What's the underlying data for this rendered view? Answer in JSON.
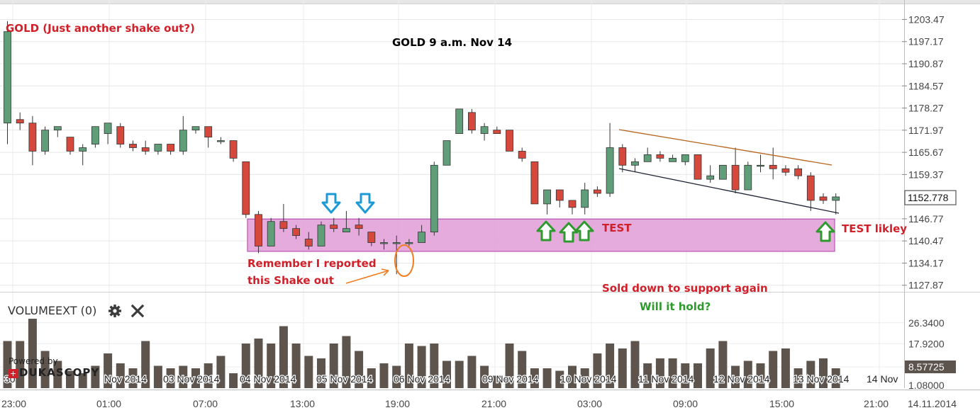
{
  "chart_data": {
    "type": "candlestick",
    "title": "GOLD 9 a.m. Nov 14",
    "price_axis": {
      "ticks": [
        "1203.47",
        "1197.17",
        "1190.87",
        "1184.57",
        "1178.27",
        "1171.97",
        "1165.67",
        "1159.37",
        "1152.778",
        "1146.77",
        "1140.47",
        "1134.17",
        "1127.87"
      ],
      "current_price": "1152.778",
      "range": [
        1126,
        1209
      ]
    },
    "volume_axis": {
      "ticks": [
        "26.3400",
        "17.9200",
        "8.57725",
        "1.08000"
      ],
      "current_volume": "8.57725",
      "range": [
        0,
        38
      ]
    },
    "time_axis": [
      "23:00",
      "01:00",
      "07:00",
      "13:00",
      "19:00",
      "21:00",
      "03:00",
      "09:00",
      "15:00",
      "21:00",
      "14.11.2014"
    ],
    "date_labels": [
      "30",
      "Nov 2014",
      "03 Nov 2014",
      "04 Nov 2014",
      "05 Nov 2014",
      "06 Nov 2014",
      "09 Nov 2014",
      "10 Nov 2014",
      "11 Nov 2014",
      "12 Nov 2014",
      "13 Nov 2014",
      "14 Nov"
    ],
    "candles": [
      {
        "o": 1174,
        "h": 1203,
        "l": 1168,
        "c": 1200
      },
      {
        "o": 1175,
        "h": 1177,
        "l": 1172,
        "c": 1174
      },
      {
        "o": 1174,
        "h": 1176,
        "l": 1162,
        "c": 1166
      },
      {
        "o": 1166,
        "h": 1173,
        "l": 1165,
        "c": 1172
      },
      {
        "o": 1172,
        "h": 1173,
        "l": 1170,
        "c": 1173
      },
      {
        "o": 1170,
        "h": 1170,
        "l": 1165,
        "c": 1166
      },
      {
        "o": 1166,
        "h": 1168,
        "l": 1162,
        "c": 1167
      },
      {
        "o": 1168,
        "h": 1173,
        "l": 1167,
        "c": 1173
      },
      {
        "o": 1171,
        "h": 1174,
        "l": 1168,
        "c": 1174
      },
      {
        "o": 1173,
        "h": 1174,
        "l": 1167,
        "c": 1168
      },
      {
        "o": 1168,
        "h": 1169,
        "l": 1166,
        "c": 1167
      },
      {
        "o": 1167,
        "h": 1169,
        "l": 1165,
        "c": 1166
      },
      {
        "o": 1166,
        "h": 1168,
        "l": 1165,
        "c": 1168
      },
      {
        "o": 1168,
        "h": 1168,
        "l": 1165,
        "c": 1166
      },
      {
        "o": 1166,
        "h": 1176,
        "l": 1165,
        "c": 1172
      },
      {
        "o": 1172,
        "h": 1173,
        "l": 1171,
        "c": 1173
      },
      {
        "o": 1173,
        "h": 1173,
        "l": 1167,
        "c": 1170
      },
      {
        "o": 1169,
        "h": 1170,
        "l": 1168,
        "c": 1169
      },
      {
        "o": 1169,
        "h": 1169,
        "l": 1163,
        "c": 1164
      },
      {
        "o": 1163,
        "h": 1163,
        "l": 1147,
        "c": 1148
      },
      {
        "o": 1148,
        "h": 1149,
        "l": 1137,
        "c": 1139
      },
      {
        "o": 1139,
        "h": 1147,
        "l": 1139,
        "c": 1146
      },
      {
        "o": 1146,
        "h": 1151,
        "l": 1143,
        "c": 1144
      },
      {
        "o": 1144,
        "h": 1145,
        "l": 1141,
        "c": 1142
      },
      {
        "o": 1141,
        "h": 1143,
        "l": 1138,
        "c": 1139
      },
      {
        "o": 1139,
        "h": 1146,
        "l": 1139,
        "c": 1145
      },
      {
        "o": 1145,
        "h": 1147,
        "l": 1143,
        "c": 1144
      },
      {
        "o": 1143,
        "h": 1149,
        "l": 1143,
        "c": 1144
      },
      {
        "o": 1145,
        "h": 1147,
        "l": 1142,
        "c": 1144
      },
      {
        "o": 1143,
        "h": 1143,
        "l": 1139,
        "c": 1140
      },
      {
        "o": 1140,
        "h": 1141,
        "l": 1138,
        "c": 1140
      },
      {
        "o": 1140,
        "h": 1142,
        "l": 1131,
        "c": 1140
      },
      {
        "o": 1140,
        "h": 1141,
        "l": 1139,
        "c": 1140
      },
      {
        "o": 1140,
        "h": 1145,
        "l": 1140,
        "c": 1143
      },
      {
        "o": 1143,
        "h": 1163,
        "l": 1142,
        "c": 1162
      },
      {
        "o": 1162,
        "h": 1169,
        "l": 1162,
        "c": 1169
      },
      {
        "o": 1171,
        "h": 1178,
        "l": 1171,
        "c": 1178
      },
      {
        "o": 1177,
        "h": 1178,
        "l": 1171,
        "c": 1172
      },
      {
        "o": 1171,
        "h": 1174,
        "l": 1169,
        "c": 1173
      },
      {
        "o": 1172,
        "h": 1173,
        "l": 1171,
        "c": 1171
      },
      {
        "o": 1172,
        "h": 1172,
        "l": 1166,
        "c": 1166
      },
      {
        "o": 1166,
        "h": 1167,
        "l": 1163,
        "c": 1164
      },
      {
        "o": 1163,
        "h": 1163,
        "l": 1151,
        "c": 1151
      },
      {
        "o": 1151,
        "h": 1155,
        "l": 1148,
        "c": 1155
      },
      {
        "o": 1155,
        "h": 1155,
        "l": 1150,
        "c": 1152
      },
      {
        "o": 1152,
        "h": 1152,
        "l": 1148,
        "c": 1150
      },
      {
        "o": 1150,
        "h": 1157,
        "l": 1148,
        "c": 1155
      },
      {
        "o": 1155,
        "h": 1156,
        "l": 1153,
        "c": 1154
      },
      {
        "o": 1154,
        "h": 1174,
        "l": 1153,
        "c": 1167
      },
      {
        "o": 1167,
        "h": 1168,
        "l": 1160,
        "c": 1162
      },
      {
        "o": 1162,
        "h": 1164,
        "l": 1160,
        "c": 1163
      },
      {
        "o": 1163,
        "h": 1167,
        "l": 1163,
        "c": 1165
      },
      {
        "o": 1165,
        "h": 1166,
        "l": 1163,
        "c": 1164
      },
      {
        "o": 1163,
        "h": 1165,
        "l": 1163,
        "c": 1164
      },
      {
        "o": 1163,
        "h": 1165,
        "l": 1162,
        "c": 1165
      },
      {
        "o": 1165,
        "h": 1165,
        "l": 1158,
        "c": 1158
      },
      {
        "o": 1158,
        "h": 1162,
        "l": 1157,
        "c": 1159
      },
      {
        "o": 1158,
        "h": 1162,
        "l": 1158,
        "c": 1162
      },
      {
        "o": 1162,
        "h": 1167,
        "l": 1154,
        "c": 1155
      },
      {
        "o": 1155,
        "h": 1163,
        "l": 1155,
        "c": 1162
      },
      {
        "o": 1162,
        "h": 1165,
        "l": 1160,
        "c": 1162
      },
      {
        "o": 1162,
        "h": 1167,
        "l": 1158,
        "c": 1161
      },
      {
        "o": 1161,
        "h": 1162,
        "l": 1159,
        "c": 1160
      },
      {
        "o": 1161,
        "h": 1162,
        "l": 1158,
        "c": 1159
      },
      {
        "o": 1159,
        "h": 1160,
        "l": 1149,
        "c": 1152
      },
      {
        "o": 1153,
        "h": 1154,
        "l": 1151,
        "c": 1152
      },
      {
        "o": 1152,
        "h": 1154,
        "l": 1148,
        "c": 1153
      }
    ],
    "volume": [
      19,
      19,
      28,
      15,
      11,
      7,
      6,
      9,
      14,
      10,
      8,
      19,
      9,
      8,
      9,
      8,
      10,
      13,
      6,
      18,
      20,
      18,
      25,
      18,
      13,
      12,
      18,
      21,
      15,
      8,
      10,
      9,
      18,
      17,
      18,
      11,
      11,
      13,
      9,
      5,
      18,
      15,
      8,
      8,
      7,
      9,
      8,
      14,
      18,
      16,
      19,
      10,
      12,
      12,
      10,
      10,
      16,
      19,
      9,
      11,
      10,
      15,
      16,
      8,
      11,
      12,
      8
    ]
  },
  "annotations": {
    "title_left": "GOLD (Just another shake out?)",
    "title_center": "GOLD 9 a.m. Nov 14",
    "test_label": "TEST",
    "test_likely_label": "TEST likley",
    "shakeout_line1": "Remember I reported",
    "shakeout_line2": "this Shake out",
    "sold_down": "Sold down to support again",
    "will_it_hold": "Will it hold?",
    "support_zone": [
      1137.5,
      1146.7
    ]
  },
  "indicator": {
    "label": "VOLUMEEXT (0)",
    "settings_icon": "gear-icon",
    "close_icon": "close-icon"
  },
  "branding": {
    "powered_by": "Powered by",
    "brand": "DUKASCOPY"
  },
  "colors": {
    "bull": "#5f9e78",
    "bear": "#d6473c",
    "volume": "#5c544d",
    "zone_fill": "#e3a3da",
    "zone_stroke": "#b440b0",
    "blue_arrow": "#1b9ad6",
    "green_arrow": "#2e9a2e"
  }
}
